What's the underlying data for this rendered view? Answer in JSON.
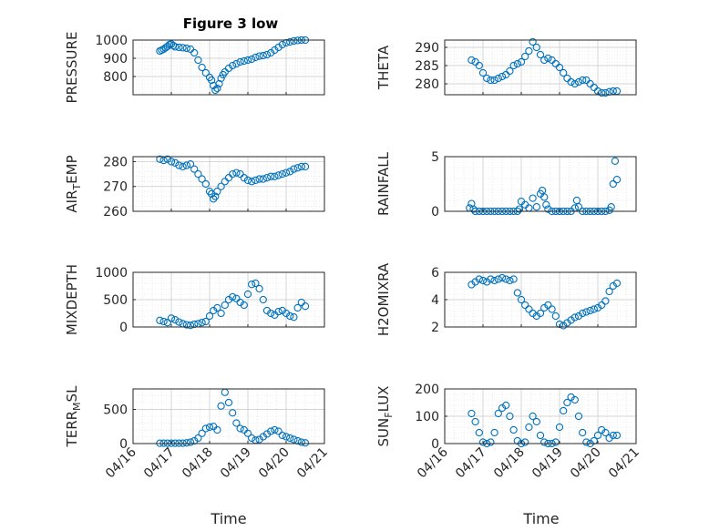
{
  "figure": {
    "title": "Figure 3 low",
    "marker_color": "#0072BD"
  },
  "chart_data": [
    {
      "type": "scatter",
      "ylabel": "PRESSURE",
      "xlim": [
        0,
        5
      ],
      "ylim": [
        700,
        1000
      ],
      "yticks": [
        800,
        900,
        1000
      ],
      "yticklabels": [
        "800",
        "900",
        "1000"
      ],
      "x": [
        0.7,
        0.75,
        0.8,
        0.85,
        0.9,
        0.95,
        1.0,
        1.05,
        1.1,
        1.2,
        1.3,
        1.4,
        1.5,
        1.6,
        1.7,
        1.8,
        1.9,
        2.0,
        2.05,
        2.1,
        2.15,
        2.2,
        2.25,
        2.3,
        2.35,
        2.4,
        2.5,
        2.6,
        2.7,
        2.8,
        2.9,
        3.0,
        3.1,
        3.2,
        3.3,
        3.4,
        3.5,
        3.6,
        3.7,
        3.8,
        3.9,
        4.0,
        4.1,
        4.2,
        4.3,
        4.4,
        4.5
      ],
      "y": [
        940,
        945,
        950,
        958,
        965,
        975,
        978,
        970,
        963,
        960,
        958,
        955,
        950,
        930,
        890,
        850,
        820,
        795,
        780,
        750,
        725,
        735,
        760,
        790,
        810,
        825,
        845,
        860,
        870,
        880,
        885,
        890,
        895,
        905,
        912,
        915,
        920,
        930,
        945,
        960,
        975,
        985,
        990,
        995,
        998,
        1000,
        1000
      ]
    },
    {
      "type": "scatter",
      "ylabel": "THETA",
      "xlim": [
        0,
        5
      ],
      "ylim": [
        277,
        292
      ],
      "yticks": [
        280,
        285,
        290
      ],
      "yticklabels": [
        "280",
        "285",
        "290"
      ],
      "x": [
        0.7,
        0.8,
        0.9,
        1.0,
        1.1,
        1.2,
        1.3,
        1.4,
        1.5,
        1.6,
        1.7,
        1.8,
        1.9,
        2.0,
        2.1,
        2.2,
        2.3,
        2.4,
        2.5,
        2.6,
        2.7,
        2.8,
        2.9,
        3.0,
        3.1,
        3.2,
        3.3,
        3.4,
        3.5,
        3.6,
        3.7,
        3.8,
        3.9,
        4.0,
        4.1,
        4.2,
        4.3,
        4.4,
        4.5
      ],
      "y": [
        286.5,
        286,
        285,
        283,
        281.5,
        281,
        281,
        281.5,
        282,
        282.5,
        283.5,
        285,
        285.5,
        286,
        287.5,
        289,
        291.5,
        290,
        288,
        286.5,
        287,
        286.5,
        285.5,
        284.5,
        283,
        281.5,
        280.5,
        280,
        280.5,
        281,
        281,
        280,
        279,
        278,
        277.5,
        277.5,
        277.8,
        278,
        278
      ]
    },
    {
      "type": "scatter",
      "ylabel": "AIR_TEMP",
      "xlim": [
        0,
        5
      ],
      "ylim": [
        260,
        282
      ],
      "yticks": [
        260,
        270,
        280
      ],
      "yticklabels": [
        "260",
        "270",
        "280"
      ],
      "x": [
        0.7,
        0.8,
        0.9,
        1.0,
        1.1,
        1.2,
        1.3,
        1.4,
        1.5,
        1.6,
        1.7,
        1.8,
        1.9,
        2.0,
        2.05,
        2.1,
        2.15,
        2.2,
        2.3,
        2.4,
        2.5,
        2.6,
        2.7,
        2.8,
        2.9,
        3.0,
        3.1,
        3.2,
        3.3,
        3.4,
        3.5,
        3.6,
        3.7,
        3.8,
        3.9,
        4.0,
        4.1,
        4.2,
        4.3,
        4.4,
        4.5
      ],
      "y": [
        281,
        280.5,
        281,
        280,
        279.5,
        278.5,
        278,
        278.5,
        279,
        277,
        275,
        273,
        271,
        268,
        267,
        265,
        266,
        268,
        270,
        272,
        273.5,
        275,
        275.5,
        275,
        273.5,
        272.5,
        272,
        272.5,
        273,
        273,
        273.5,
        274,
        274,
        274.5,
        275,
        275.5,
        276,
        277,
        277.5,
        278,
        278
      ]
    },
    {
      "type": "scatter",
      "ylabel": "RAINFALL",
      "xlim": [
        0,
        5
      ],
      "ylim": [
        0,
        5
      ],
      "yticks": [
        0,
        5
      ],
      "yticklabels": [
        "0",
        "5"
      ],
      "x": [
        0.65,
        0.7,
        0.75,
        0.8,
        0.9,
        1.0,
        1.1,
        1.2,
        1.3,
        1.4,
        1.5,
        1.6,
        1.7,
        1.8,
        1.9,
        1.95,
        2.0,
        2.1,
        2.2,
        2.3,
        2.4,
        2.5,
        2.55,
        2.6,
        2.65,
        2.7,
        2.8,
        2.9,
        3.0,
        3.1,
        3.2,
        3.3,
        3.4,
        3.45,
        3.5,
        3.6,
        3.7,
        3.8,
        3.9,
        4.0,
        4.1,
        4.2,
        4.3,
        4.35,
        4.4,
        4.45,
        4.5
      ],
      "y": [
        0.3,
        0.7,
        0.2,
        0,
        0,
        0,
        0,
        0,
        0,
        0,
        0,
        0,
        0,
        0,
        0,
        0.2,
        0.9,
        0.6,
        0.3,
        1.2,
        0.4,
        1.6,
        1.9,
        1.3,
        0.6,
        0.2,
        0,
        0,
        0,
        0,
        0,
        0,
        0.3,
        1.0,
        0.4,
        0,
        0,
        0,
        0,
        0,
        0,
        0,
        0.1,
        0.4,
        2.5,
        4.6,
        2.9
      ]
    },
    {
      "type": "scatter",
      "ylabel": "MIXDEPTH",
      "xlim": [
        0,
        5
      ],
      "ylim": [
        0,
        1000
      ],
      "yticks": [
        0,
        500,
        1000
      ],
      "yticklabels": [
        "0",
        "500",
        "1000"
      ],
      "x": [
        0.7,
        0.8,
        0.9,
        1.0,
        1.1,
        1.2,
        1.3,
        1.4,
        1.5,
        1.6,
        1.7,
        1.8,
        1.9,
        2.0,
        2.1,
        2.2,
        2.3,
        2.4,
        2.5,
        2.6,
        2.7,
        2.8,
        2.9,
        3.0,
        3.1,
        3.2,
        3.3,
        3.4,
        3.5,
        3.6,
        3.7,
        3.8,
        3.9,
        4.0,
        4.1,
        4.2,
        4.3,
        4.4,
        4.5
      ],
      "y": [
        120,
        100,
        80,
        160,
        130,
        90,
        60,
        40,
        30,
        50,
        60,
        80,
        100,
        200,
        300,
        350,
        250,
        400,
        500,
        550,
        520,
        450,
        400,
        600,
        780,
        800,
        700,
        500,
        300,
        250,
        220,
        280,
        300,
        250,
        200,
        180,
        350,
        450,
        380
      ]
    },
    {
      "type": "scatter",
      "ylabel": "H2OMIXRA",
      "xlim": [
        0,
        5
      ],
      "ylim": [
        2,
        6
      ],
      "yticks": [
        2,
        4,
        6
      ],
      "yticklabels": [
        "2",
        "4",
        "6"
      ],
      "x": [
        0.7,
        0.8,
        0.9,
        1.0,
        1.1,
        1.2,
        1.3,
        1.4,
        1.5,
        1.6,
        1.7,
        1.8,
        1.9,
        2.0,
        2.1,
        2.2,
        2.3,
        2.4,
        2.5,
        2.6,
        2.7,
        2.8,
        2.9,
        3.0,
        3.1,
        3.2,
        3.3,
        3.4,
        3.5,
        3.6,
        3.7,
        3.8,
        3.9,
        4.0,
        4.1,
        4.2,
        4.3,
        4.4,
        4.5
      ],
      "y": [
        5.1,
        5.3,
        5.5,
        5.4,
        5.3,
        5.5,
        5.4,
        5.5,
        5.6,
        5.5,
        5.4,
        5.5,
        4.5,
        4.0,
        3.6,
        3.3,
        3.0,
        2.8,
        3.0,
        3.4,
        3.6,
        3.3,
        2.8,
        2.2,
        2.1,
        2.3,
        2.5,
        2.7,
        2.8,
        3.0,
        3.1,
        3.2,
        3.3,
        3.4,
        3.6,
        3.9,
        4.6,
        5.0,
        5.2
      ]
    },
    {
      "type": "scatter",
      "ylabel": "TERR_MSL",
      "xlim": [
        0,
        5
      ],
      "ylim": [
        0,
        800
      ],
      "yticks": [
        0,
        500
      ],
      "yticklabels": [
        "0",
        "500"
      ],
      "x": [
        0.7,
        0.8,
        0.9,
        1.0,
        1.1,
        1.2,
        1.3,
        1.4,
        1.5,
        1.6,
        1.7,
        1.8,
        1.9,
        2.0,
        2.1,
        2.2,
        2.3,
        2.4,
        2.5,
        2.6,
        2.7,
        2.8,
        2.9,
        3.0,
        3.1,
        3.2,
        3.3,
        3.4,
        3.5,
        3.6,
        3.7,
        3.8,
        3.9,
        4.0,
        4.1,
        4.2,
        4.3,
        4.4,
        4.5
      ],
      "y": [
        5,
        5,
        5,
        5,
        5,
        5,
        5,
        10,
        20,
        40,
        80,
        150,
        220,
        240,
        250,
        200,
        550,
        750,
        600,
        450,
        300,
        220,
        200,
        150,
        80,
        50,
        60,
        100,
        140,
        180,
        200,
        180,
        120,
        100,
        80,
        60,
        40,
        20,
        10
      ]
    },
    {
      "type": "scatter",
      "ylabel": "SUN_FLUX",
      "xlim": [
        0,
        5
      ],
      "ylim": [
        0,
        200
      ],
      "yticks": [
        0,
        100,
        200
      ],
      "yticklabels": [
        "0",
        "100",
        "200"
      ],
      "x": [
        0.7,
        0.8,
        0.9,
        1.0,
        1.1,
        1.2,
        1.3,
        1.4,
        1.5,
        1.6,
        1.7,
        1.8,
        1.9,
        2.0,
        2.1,
        2.2,
        2.3,
        2.4,
        2.5,
        2.6,
        2.7,
        2.8,
        2.9,
        3.0,
        3.1,
        3.2,
        3.3,
        3.4,
        3.5,
        3.6,
        3.7,
        3.8,
        3.9,
        4.0,
        4.1,
        4.2,
        4.3,
        4.4,
        4.5
      ],
      "y": [
        110,
        80,
        40,
        5,
        0,
        5,
        40,
        110,
        130,
        140,
        100,
        50,
        10,
        0,
        5,
        60,
        100,
        80,
        30,
        5,
        0,
        0,
        5,
        60,
        120,
        150,
        170,
        160,
        100,
        40,
        5,
        0,
        10,
        30,
        50,
        40,
        20,
        30,
        30
      ]
    }
  ],
  "xaxis": {
    "tick_values": [
      0,
      1,
      2,
      3,
      4,
      5
    ],
    "ticklabels": [
      "04/16",
      "04/17",
      "04/18",
      "04/19",
      "04/20",
      "04/21"
    ],
    "label": "Time"
  }
}
